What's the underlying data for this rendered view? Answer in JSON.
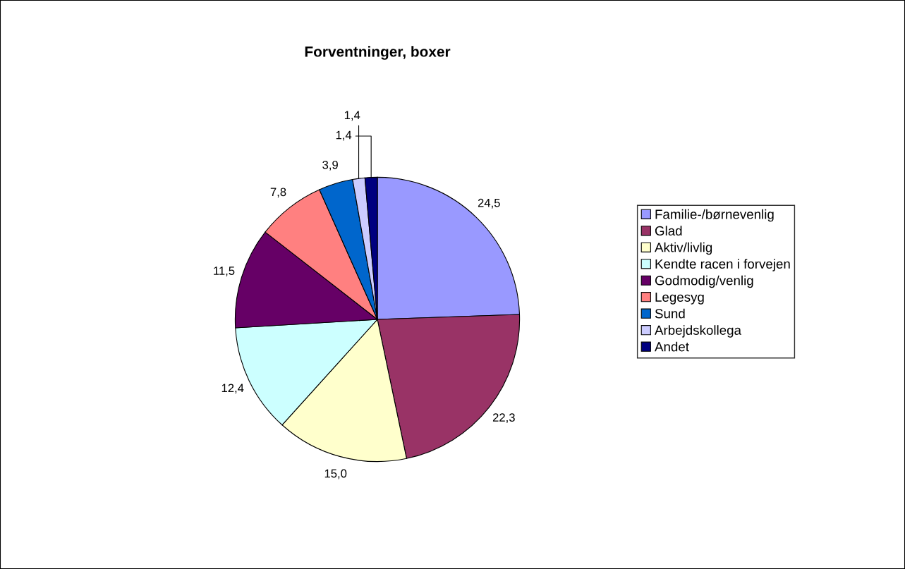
{
  "chart_data": {
    "type": "pie",
    "title": "Forventninger, boxer",
    "categories": [
      "Familie-/børnevenlig",
      "Glad",
      "Aktiv/livlig",
      "Kendte racen i forvejen",
      "Godmodig/venlig",
      "Legesyg",
      "Sund",
      "Arbejdskollega",
      "Andet"
    ],
    "values": [
      24.5,
      22.3,
      15.0,
      12.4,
      11.5,
      7.8,
      3.9,
      1.4,
      1.4
    ],
    "value_labels": [
      "24,5",
      "22,3",
      "15,0",
      "12,4",
      "11,5",
      "7,8",
      "3,9",
      "1,4",
      "1,4"
    ],
    "colors": [
      "#9999ff",
      "#993366",
      "#ffffcc",
      "#ccffff",
      "#660066",
      "#ff8080",
      "#0066cc",
      "#ccccff",
      "#000080"
    ],
    "legend": "right"
  }
}
